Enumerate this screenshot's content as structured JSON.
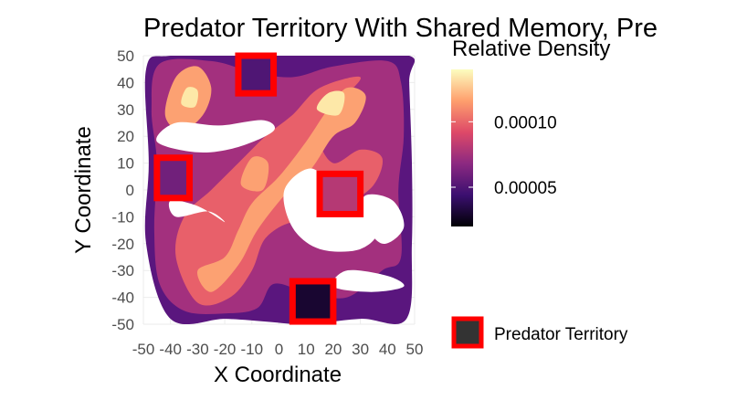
{
  "chart_data": {
    "type": "heatmap",
    "title": "Predator Territory With Shared Memory, Pre",
    "xlabel": "X Coordinate",
    "ylabel": "Y Coordinate",
    "xlim": [
      -50,
      50
    ],
    "ylim": [
      -50,
      50
    ],
    "x_ticks": [
      -50,
      -40,
      -30,
      -20,
      -10,
      0,
      10,
      20,
      30,
      40,
      50
    ],
    "y_ticks": [
      -50,
      -40,
      -30,
      -20,
      -10,
      0,
      10,
      20,
      30,
      40,
      50
    ],
    "x_tick_labels": [
      "-50",
      "-40",
      "-30",
      "-20",
      "-10",
      "0",
      "10",
      "20",
      "30",
      "40",
      "50"
    ],
    "y_tick_labels": [
      "-50",
      "-40",
      "-30",
      "-20",
      "-10",
      "0",
      "10",
      "20",
      "30",
      "40",
      "50"
    ],
    "grid": true,
    "colorbar": {
      "title": "Relative Density",
      "range": [
        2e-05,
        0.00014
      ],
      "ticks": [
        {
          "value": 0.0001,
          "label": "0.00010"
        },
        {
          "value": 5e-05,
          "label": "0.00005"
        }
      ],
      "colors": [
        "#000004",
        "#3b0f70",
        "#8c2981",
        "#de4968",
        "#fe9f6d",
        "#fcfdbf"
      ]
    },
    "density_contours": [
      {
        "level": 4e-05,
        "color": "#5a167e",
        "points": [
          [
            -40,
            -48
          ],
          [
            -20,
            -48
          ],
          [
            -5,
            -49
          ],
          [
            10,
            -50
          ],
          [
            30,
            -48
          ],
          [
            47,
            -48
          ],
          [
            49,
            -20
          ],
          [
            49,
            10
          ],
          [
            48,
            40
          ],
          [
            48,
            50
          ],
          [
            20,
            50
          ],
          [
            -10,
            50
          ],
          [
            -40,
            50
          ],
          [
            -49,
            45
          ],
          [
            -48,
            10
          ],
          [
            -49,
            -20
          ]
        ]
      },
      {
        "level": 7e-05,
        "color": "#a3307e",
        "points": [
          [
            -35,
            -45
          ],
          [
            -20,
            -46
          ],
          [
            -8,
            -44
          ],
          [
            -2,
            -35
          ],
          [
            10,
            -38
          ],
          [
            25,
            -40
          ],
          [
            38,
            -30
          ],
          [
            45,
            -25
          ],
          [
            44,
            0
          ],
          [
            46,
            20
          ],
          [
            45,
            40
          ],
          [
            40,
            48
          ],
          [
            20,
            46
          ],
          [
            5,
            42
          ],
          [
            -10,
            44
          ],
          [
            -25,
            48
          ],
          [
            -44,
            47
          ],
          [
            -47,
            30
          ],
          [
            -45,
            10
          ],
          [
            -46,
            -15
          ],
          [
            -44,
            -35
          ]
        ]
      },
      {
        "level": 9e-05,
        "color": "#e8606a",
        "points": [
          [
            -30,
            -42
          ],
          [
            -18,
            -40
          ],
          [
            -10,
            -30
          ],
          [
            -5,
            -18
          ],
          [
            5,
            -12
          ],
          [
            15,
            -14
          ],
          [
            25,
            -6
          ],
          [
            35,
            2
          ],
          [
            38,
            12
          ],
          [
            30,
            15
          ],
          [
            20,
            10
          ],
          [
            15,
            20
          ],
          [
            22,
            32
          ],
          [
            30,
            42
          ],
          [
            15,
            38
          ],
          [
            5,
            28
          ],
          [
            -5,
            20
          ],
          [
            -15,
            10
          ],
          [
            -25,
            0
          ],
          [
            -35,
            -10
          ],
          [
            -38,
            -25
          ]
        ]
      },
      {
        "level": 0.00011,
        "color": "#fca172",
        "points": [
          [
            -30,
            -30
          ],
          [
            -20,
            -25
          ],
          [
            -15,
            -15
          ],
          [
            -10,
            -5
          ],
          [
            0,
            5
          ],
          [
            10,
            18
          ],
          [
            18,
            30
          ],
          [
            25,
            38
          ],
          [
            32,
            35
          ],
          [
            28,
            25
          ],
          [
            20,
            20
          ],
          [
            12,
            8
          ],
          [
            2,
            -2
          ],
          [
            -8,
            -15
          ],
          [
            -15,
            -28
          ],
          [
            -25,
            -38
          ]
        ]
      },
      {
        "level": 0.00011,
        "color": "#fca172",
        "points": [
          [
            -42,
            28
          ],
          [
            -38,
            42
          ],
          [
            -30,
            46
          ],
          [
            -25,
            38
          ],
          [
            -28,
            28
          ],
          [
            -36,
            22
          ]
        ]
      },
      {
        "level": 0.00011,
        "color": "#fca172",
        "points": [
          [
            -14,
            2
          ],
          [
            -10,
            12
          ],
          [
            -4,
            10
          ],
          [
            -6,
            0
          ]
        ]
      },
      {
        "level": 0.00013,
        "color": "#fde8a8",
        "points": [
          [
            14,
            30
          ],
          [
            18,
            36
          ],
          [
            24,
            36
          ],
          [
            22,
            28
          ]
        ]
      },
      {
        "level": 0.00013,
        "color": "#fde8a8",
        "points": [
          [
            -36,
            32
          ],
          [
            -34,
            38
          ],
          [
            -30,
            37
          ],
          [
            -31,
            31
          ]
        ]
      }
    ],
    "empty_regions": [
      {
        "points": [
          [
            -45,
            18
          ],
          [
            -30,
            14
          ],
          [
            -15,
            16
          ],
          [
            -2,
            22
          ],
          [
            -6,
            26
          ],
          [
            -22,
            24
          ],
          [
            -38,
            25
          ]
        ]
      },
      {
        "points": [
          [
            2,
            0
          ],
          [
            12,
            8
          ],
          [
            22,
            -2
          ],
          [
            36,
            -14
          ],
          [
            30,
            -22
          ],
          [
            15,
            -22
          ],
          [
            5,
            -14
          ]
        ]
      },
      {
        "points": [
          [
            -40,
            -4
          ],
          [
            -30,
            -6
          ],
          [
            -20,
            -12
          ],
          [
            -26,
            -8
          ],
          [
            -38,
            -10
          ]
        ]
      },
      {
        "points": [
          [
            25,
            -30
          ],
          [
            40,
            -32
          ],
          [
            46,
            -36
          ],
          [
            34,
            -38
          ],
          [
            20,
            -36
          ]
        ]
      },
      {
        "points": [
          [
            32,
            -2
          ],
          [
            42,
            -4
          ],
          [
            46,
            -14
          ],
          [
            38,
            -20
          ],
          [
            30,
            -10
          ]
        ]
      }
    ],
    "predator_territories": [
      {
        "x_range": [
          -15,
          -2
        ],
        "y_range": [
          36,
          50
        ],
        "density": 5e-05
      },
      {
        "x_range": [
          -45,
          -33
        ],
        "y_range": [
          -3,
          12
        ],
        "density": 6e-05
      },
      {
        "x_range": [
          15,
          30
        ],
        "y_range": [
          -9,
          6
        ],
        "density": 8e-05
      },
      {
        "x_range": [
          5,
          20
        ],
        "y_range": [
          -49,
          -34
        ],
        "density": 3e-05
      }
    ],
    "legend": {
      "label": "Predator Territory",
      "fill": "#333333",
      "border": "#ff0000",
      "placement": "right"
    }
  }
}
